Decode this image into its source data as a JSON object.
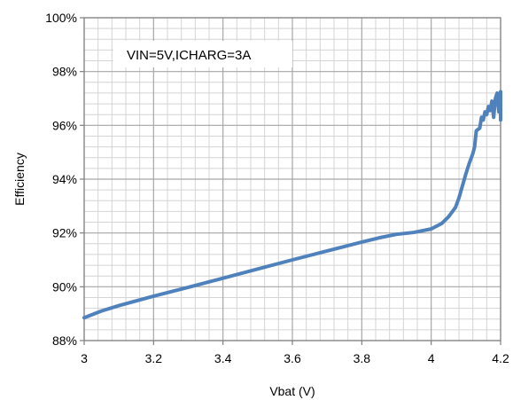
{
  "chart_data": {
    "type": "line",
    "title": "",
    "xlabel": "Vbat (V)",
    "ylabel": "Efficiency",
    "xlim": [
      3,
      4.2
    ],
    "ylim": [
      88,
      100
    ],
    "x_ticks": [
      3,
      3.2,
      3.4,
      3.6,
      3.8,
      4,
      4.2
    ],
    "x_tick_labels": [
      "3",
      "3.2",
      "3.4",
      "3.6",
      "3.8",
      "4",
      "4.2"
    ],
    "y_ticks": [
      88,
      90,
      92,
      94,
      96,
      98,
      100
    ],
    "y_tick_labels": [
      "88%",
      "90%",
      "92%",
      "94%",
      "96%",
      "98%",
      "100%"
    ],
    "grid": true,
    "minor_grid": true,
    "legend": "none",
    "annotation": "VIN=5V,ICHARG=3A",
    "colors": {
      "series": "#4f81bd",
      "major_grid": "#a6a6a6",
      "minor_grid": "#d4d4d4",
      "axis": "#7f7f7f"
    },
    "series": [
      {
        "x": [
          3.0,
          3.05,
          3.1,
          3.2,
          3.3,
          3.4,
          3.5,
          3.6,
          3.7,
          3.8,
          3.85,
          3.9,
          3.95,
          4.0,
          4.03,
          4.05,
          4.07,
          4.08,
          4.09,
          4.1,
          4.11,
          4.12,
          4.125,
          4.13,
          4.14,
          4.145,
          4.15,
          4.155,
          4.16,
          4.165,
          4.17,
          4.175,
          4.18,
          4.185,
          4.19,
          4.195,
          4.2,
          4.2
        ],
        "values": [
          88.85,
          89.1,
          89.3,
          89.65,
          89.98,
          90.32,
          90.66,
          91.0,
          91.33,
          91.66,
          91.82,
          91.95,
          92.02,
          92.15,
          92.35,
          92.6,
          92.95,
          93.3,
          93.75,
          94.2,
          94.6,
          94.95,
          95.2,
          95.8,
          95.9,
          96.3,
          96.2,
          96.5,
          96.4,
          96.7,
          96.55,
          96.9,
          96.3,
          97.0,
          97.2,
          96.5,
          97.25,
          96.2
        ]
      }
    ]
  }
}
